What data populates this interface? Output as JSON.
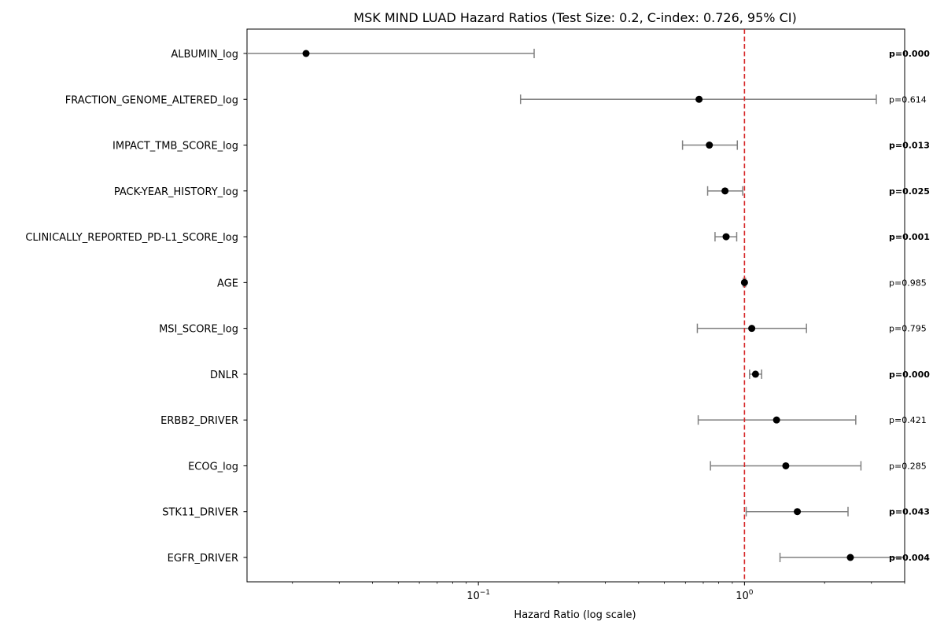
{
  "chart_data": {
    "type": "forest",
    "title": "MSK MIND LUAD Hazard Ratios (Test Size: 0.2, C-index: 0.726, 95% CI)",
    "xlabel": "Hazard Ratio (log scale)",
    "xscale": "log",
    "xlim": [
      0.0135,
      4.0
    ],
    "x_ticks": [
      {
        "value": 0.1,
        "base": "10",
        "exp": "−1"
      },
      {
        "value": 1.0,
        "base": "10",
        "exp": "0"
      }
    ],
    "reference_line": 1.0,
    "colors": {
      "point": "#000000",
      "ci": "#808080",
      "reference": "#d62728"
    },
    "variables": [
      {
        "name": "ALBUMIN_log",
        "hr": 0.0225,
        "lo": 0.0135,
        "hi": 0.162,
        "p": "p=0.000",
        "significant": true
      },
      {
        "name": "FRACTION_GENOME_ALTERED_log",
        "hr": 0.675,
        "lo": 0.144,
        "hi": 3.13,
        "p": "p=0.614",
        "significant": false
      },
      {
        "name": "IMPACT_TMB_SCORE_log",
        "hr": 0.738,
        "lo": 0.585,
        "hi": 0.94,
        "p": "p=0.013",
        "significant": true
      },
      {
        "name": "PACK-YEAR_HISTORY_log",
        "hr": 0.845,
        "lo": 0.727,
        "hi": 0.985,
        "p": "p=0.025",
        "significant": true
      },
      {
        "name": "CLINICALLY_REPORTED_PD-L1_SCORE_log",
        "hr": 0.853,
        "lo": 0.775,
        "hi": 0.935,
        "p": "p=0.001",
        "significant": true
      },
      {
        "name": "AGE",
        "hr": 1.0,
        "lo": 0.99,
        "hi": 1.01,
        "p": "p=0.985",
        "significant": false
      },
      {
        "name": "MSI_SCORE_log",
        "hr": 1.065,
        "lo": 0.665,
        "hi": 1.71,
        "p": "p=0.795",
        "significant": false
      },
      {
        "name": "DNLR",
        "hr": 1.1,
        "lo": 1.045,
        "hi": 1.16,
        "p": "p=0.000",
        "significant": true
      },
      {
        "name": "ERBB2_DRIVER",
        "hr": 1.32,
        "lo": 0.67,
        "hi": 2.62,
        "p": "p=0.421",
        "significant": false
      },
      {
        "name": "ECOG_log",
        "hr": 1.43,
        "lo": 0.745,
        "hi": 2.74,
        "p": "p=0.285",
        "significant": false
      },
      {
        "name": "STK11_DRIVER",
        "hr": 1.58,
        "lo": 1.015,
        "hi": 2.45,
        "p": "p=0.043",
        "significant": true
      },
      {
        "name": "EGFR_DRIVER",
        "hr": 2.5,
        "lo": 1.36,
        "hi": 4.0,
        "p": "p=0.004",
        "significant": true
      }
    ]
  }
}
